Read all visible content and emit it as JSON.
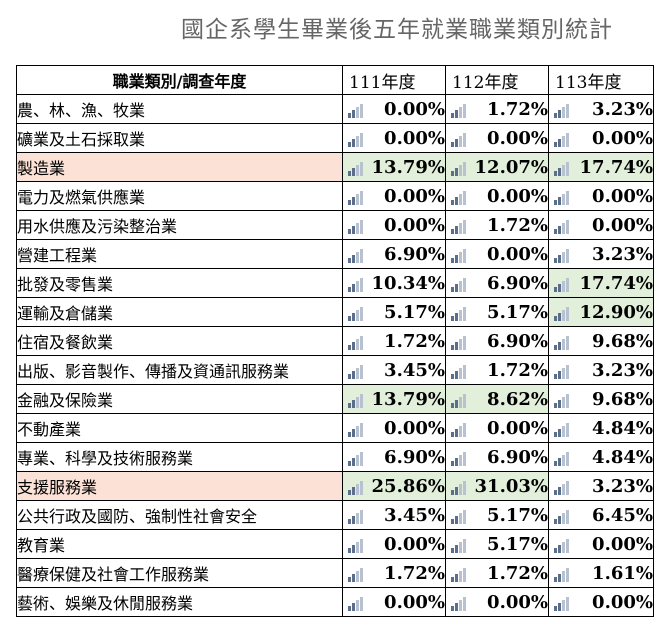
{
  "title": "國企系學生畢業後五年就業職業類別統計",
  "table": {
    "header": {
      "category": "職業類別/調查年度",
      "years": [
        "111年度",
        "112年度",
        "113年度"
      ]
    },
    "cell_icon": "bar-chart-icon",
    "highlight_colors": {
      "category": "#fbe1d6",
      "value": "#e2efda"
    },
    "rows": [
      {
        "label": "農、林、漁、牧業",
        "values": [
          "0.00%",
          "1.72%",
          "3.23%"
        ],
        "hl": false,
        "vhl": [
          false,
          false,
          false
        ]
      },
      {
        "label": "礦業及土石採取業",
        "values": [
          "0.00%",
          "0.00%",
          "0.00%"
        ],
        "hl": false,
        "vhl": [
          false,
          false,
          false
        ]
      },
      {
        "label": "製造業",
        "values": [
          "13.79%",
          "12.07%",
          "17.74%"
        ],
        "hl": true,
        "vhl": [
          true,
          true,
          true
        ]
      },
      {
        "label": "電力及燃氣供應業",
        "values": [
          "0.00%",
          "0.00%",
          "0.00%"
        ],
        "hl": false,
        "vhl": [
          false,
          false,
          false
        ]
      },
      {
        "label": "用水供應及污染整治業",
        "values": [
          "0.00%",
          "1.72%",
          "0.00%"
        ],
        "hl": false,
        "vhl": [
          false,
          false,
          false
        ]
      },
      {
        "label": "營建工程業",
        "values": [
          "6.90%",
          "0.00%",
          "3.23%"
        ],
        "hl": false,
        "vhl": [
          false,
          false,
          false
        ]
      },
      {
        "label": "批發及零售業",
        "values": [
          "10.34%",
          "6.90%",
          "17.74%"
        ],
        "hl": false,
        "vhl": [
          false,
          false,
          true
        ]
      },
      {
        "label": "運輸及倉儲業",
        "values": [
          "5.17%",
          "5.17%",
          "12.90%"
        ],
        "hl": false,
        "vhl": [
          false,
          false,
          true
        ]
      },
      {
        "label": "住宿及餐飲業",
        "values": [
          "1.72%",
          "6.90%",
          "9.68%"
        ],
        "hl": false,
        "vhl": [
          false,
          false,
          false
        ]
      },
      {
        "label": "出版、影音製作、傳播及資通訊服務業",
        "values": [
          "3.45%",
          "1.72%",
          "3.23%"
        ],
        "hl": false,
        "vhl": [
          false,
          false,
          false
        ]
      },
      {
        "label": "金融及保險業",
        "values": [
          "13.79%",
          "8.62%",
          "9.68%"
        ],
        "hl": false,
        "vhl": [
          true,
          true,
          false
        ]
      },
      {
        "label": "不動產業",
        "values": [
          "0.00%",
          "0.00%",
          "4.84%"
        ],
        "hl": false,
        "vhl": [
          false,
          false,
          false
        ]
      },
      {
        "label": "專業、科學及技術服務業",
        "values": [
          "6.90%",
          "6.90%",
          "4.84%"
        ],
        "hl": false,
        "vhl": [
          false,
          false,
          false
        ]
      },
      {
        "label": "支援服務業",
        "values": [
          "25.86%",
          "31.03%",
          "3.23%"
        ],
        "hl": true,
        "vhl": [
          true,
          true,
          false
        ]
      },
      {
        "label": "公共行政及國防、強制性社會安全",
        "values": [
          "3.45%",
          "5.17%",
          "6.45%"
        ],
        "hl": false,
        "vhl": [
          false,
          false,
          false
        ]
      },
      {
        "label": "教育業",
        "values": [
          "0.00%",
          "5.17%",
          "0.00%"
        ],
        "hl": false,
        "vhl": [
          false,
          false,
          false
        ]
      },
      {
        "label": "醫療保健及社會工作服務業",
        "values": [
          "1.72%",
          "1.72%",
          "1.61%"
        ],
        "hl": false,
        "vhl": [
          false,
          false,
          false
        ]
      },
      {
        "label": "藝術、娛樂及休閒服務業",
        "values": [
          "0.00%",
          "0.00%",
          "0.00%"
        ],
        "hl": false,
        "vhl": [
          false,
          false,
          false
        ]
      }
    ]
  }
}
